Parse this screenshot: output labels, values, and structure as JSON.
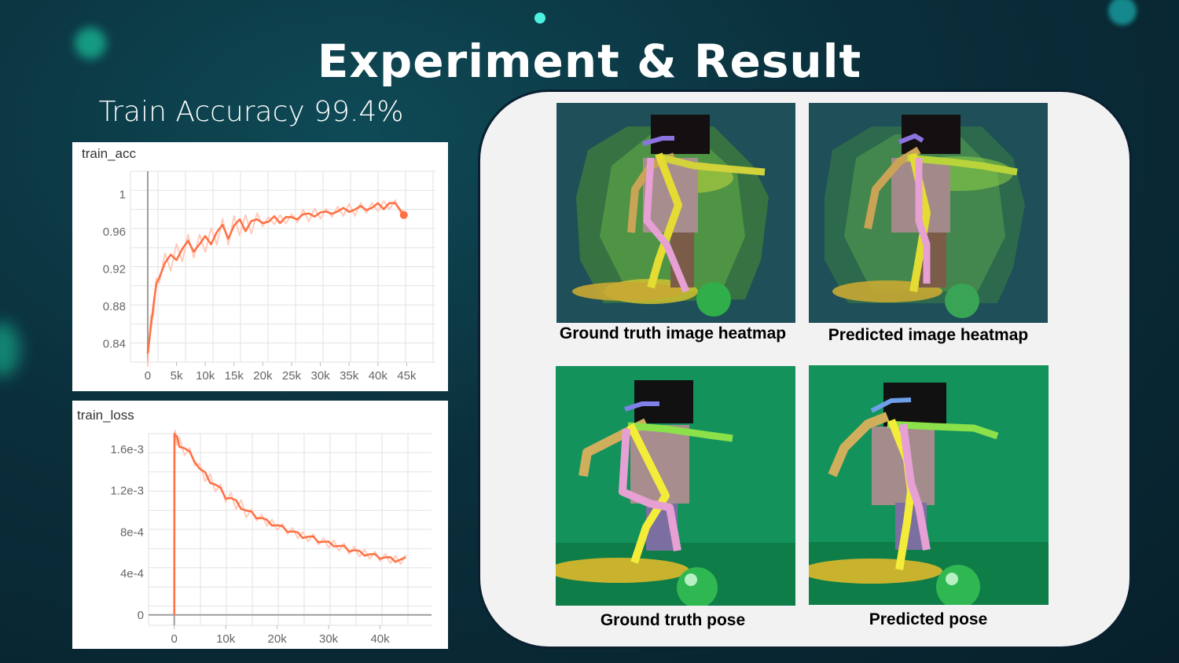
{
  "slide": {
    "title": "Experiment & Result",
    "accuracy_caption": "Train Accuracy 99.4%"
  },
  "colors": {
    "series": "#ff7043",
    "series_raw": "#ffccbc",
    "panel": "#f2f2f2",
    "accent_glow": "#1de9b6"
  },
  "chart_data": [
    {
      "type": "line",
      "title": "train_acc",
      "xlabel": "",
      "ylabel": "",
      "x_ticks": [
        "0",
        "5k",
        "10k",
        "15k",
        "20k",
        "25k",
        "30k",
        "35k",
        "40k",
        "45k"
      ],
      "y_ticks": [
        "0.84",
        "0.88",
        "0.92",
        "0.96",
        "1"
      ],
      "xlim": [
        -3000,
        50000
      ],
      "ylim": [
        0.82,
        1.025
      ],
      "grid": true,
      "series": [
        {
          "x": [
            0,
            500,
            1000,
            1500,
            2000,
            3000,
            4000,
            5000,
            6000,
            7000,
            8000,
            9000,
            10000,
            11000,
            12000,
            13000,
            14000,
            15000,
            16000,
            17000,
            18000,
            19000,
            20000,
            21000,
            22000,
            23000,
            24000,
            25000,
            26000,
            27000,
            28000,
            29000,
            30000,
            31000,
            32000,
            33000,
            34000,
            35000,
            36000,
            37000,
            38000,
            39000,
            40000,
            41000,
            42000,
            43000,
            44000,
            44500
          ],
          "y": [
            0.825,
            0.86,
            0.88,
            0.9,
            0.915,
            0.925,
            0.93,
            0.935,
            0.94,
            0.945,
            0.944,
            0.945,
            0.95,
            0.952,
            0.958,
            0.962,
            0.958,
            0.965,
            0.968,
            0.966,
            0.97,
            0.968,
            0.972,
            0.97,
            0.974,
            0.972,
            0.975,
            0.973,
            0.976,
            0.978,
            0.977,
            0.979,
            0.98,
            0.979,
            0.982,
            0.981,
            0.983,
            0.984,
            0.983,
            0.985,
            0.986,
            0.985,
            0.988,
            0.987,
            0.99,
            0.988,
            0.985,
            0.978
          ]
        }
      ],
      "end_point": {
        "x": 44500,
        "y": 0.978
      }
    },
    {
      "type": "line",
      "title": "train_loss",
      "xlabel": "",
      "ylabel": "",
      "x_ticks": [
        "0",
        "10k",
        "20k",
        "30k",
        "40k"
      ],
      "y_ticks": [
        "0",
        "4e-4",
        "8e-4",
        "1.2e-3",
        "1.6e-3"
      ],
      "xlim": [
        -5000,
        50000
      ],
      "ylim": [
        -0.0001,
        0.00175
      ],
      "grid": true,
      "series": [
        {
          "x": [
            0,
            10,
            20,
            30,
            50,
            200,
            500,
            1000,
            2000,
            3000,
            4000,
            5000,
            6000,
            7000,
            8000,
            9000,
            10000,
            11000,
            12000,
            13000,
            14000,
            15000,
            16000,
            17000,
            18000,
            19000,
            20000,
            21000,
            22000,
            23000,
            24000,
            25000,
            26000,
            27000,
            28000,
            29000,
            30000,
            31000,
            32000,
            33000,
            34000,
            35000,
            36000,
            37000,
            38000,
            39000,
            40000,
            41000,
            42000,
            43000,
            44000,
            45000
          ],
          "y": [
            0,
            0.0002,
            0.0008,
            0.0014,
            0.00175,
            0.00172,
            0.0017,
            0.00165,
            0.0016,
            0.00155,
            0.0015,
            0.0014,
            0.00135,
            0.0013,
            0.00125,
            0.0012,
            0.00115,
            0.00112,
            0.00108,
            0.00105,
            0.001,
            0.00098,
            0.00095,
            0.00093,
            0.0009,
            0.00088,
            0.00086,
            0.00084,
            0.00082,
            0.0008,
            0.00078,
            0.00076,
            0.00075,
            0.00074,
            0.00072,
            0.0007,
            0.00069,
            0.00068,
            0.00066,
            0.00065,
            0.00063,
            0.00062,
            0.0006,
            0.00059,
            0.00058,
            0.00057,
            0.00056,
            0.00055,
            0.00054,
            0.00053,
            0.00053,
            0.00054
          ]
        }
      ]
    }
  ],
  "results": {
    "gt_heatmap_caption": "Ground truth image heatmap",
    "pred_heatmap_caption": "Predicted image heatmap",
    "gt_pose_caption": "Ground truth pose",
    "pred_pose_caption": "Predicted pose"
  }
}
